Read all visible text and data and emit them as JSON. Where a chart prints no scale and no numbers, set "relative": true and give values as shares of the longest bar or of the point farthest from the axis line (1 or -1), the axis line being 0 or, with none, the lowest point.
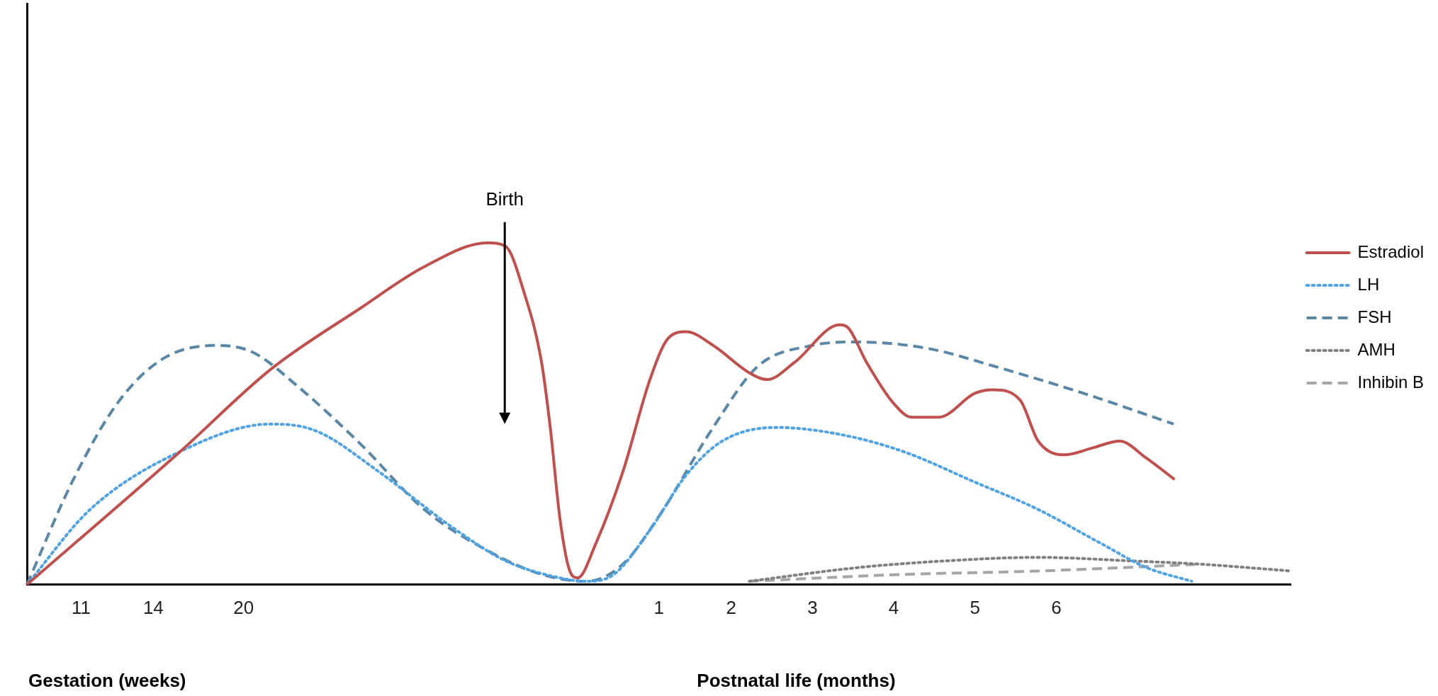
{
  "chart_data": {
    "type": "line",
    "relative": true,
    "categories": [
      null,
      null,
      null,
      null,
      null,
      null,
      "11",
      null,
      null,
      null,
      null,
      null,
      null,
      null,
      "14",
      null,
      null,
      null,
      null,
      null,
      null,
      null,
      null,
      null,
      "20",
      null,
      null,
      null,
      null,
      null,
      null,
      null,
      null,
      null,
      null,
      null,
      null,
      null,
      null,
      null,
      null,
      null,
      null,
      null,
      null,
      null,
      null,
      null,
      null,
      null,
      null,
      null,
      null,
      null,
      null,
      null,
      null,
      null,
      null,
      null,
      null,
      null,
      null,
      null,
      null,
      null,
      null,
      null,
      null,
      null,
      "1",
      null,
      null,
      null,
      null,
      null,
      null,
      null,
      "2",
      null,
      null,
      null,
      null,
      null,
      null,
      null,
      null,
      "3",
      null,
      null,
      null,
      null,
      null,
      null,
      null,
      null,
      "4",
      null,
      null,
      null,
      null,
      null,
      null,
      null,
      null,
      "5",
      null,
      null,
      null,
      null,
      null,
      null,
      null,
      null,
      "6",
      null,
      null,
      null,
      null,
      null,
      null,
      null,
      null,
      null,
      null,
      null,
      null,
      null,
      null,
      null,
      null,
      null,
      null,
      null,
      null,
      null,
      null,
      null,
      null,
      null,
      null
    ],
    "series": [
      {
        "name": "Estradiol",
        "color": "#c0504d",
        "line_style": "solid",
        "values": [
          0,
          null,
          null,
          null,
          null,
          null,
          null,
          null,
          null,
          null,
          null,
          null,
          null,
          null,
          null,
          null,
          null,
          0.39,
          null,
          null,
          null,
          null,
          null,
          null,
          null,
          null,
          null,
          0.63,
          null,
          null,
          null,
          null,
          null,
          null,
          null,
          null,
          null,
          0.81,
          null,
          null,
          null,
          null,
          null,
          null,
          0.93,
          null,
          null,
          null,
          null,
          null,
          null,
          1,
          null,
          0.99,
          null,
          0.86,
          null,
          0.65,
          0.45,
          0.2,
          0.05,
          0.02,
          null,
          0.12,
          null,
          null,
          0.33,
          null,
          null,
          0.6,
          null,
          0.72,
          null,
          0.74,
          null,
          null,
          0.7,
          null,
          null,
          null,
          0.62,
          null,
          0.6,
          null,
          null,
          0.65,
          null,
          null,
          null,
          null,
          0.76,
          0.75,
          null,
          0.65,
          null,
          null,
          0.53,
          null,
          0.49,
          null,
          null,
          0.49,
          null,
          null,
          null,
          0.56,
          null,
          0.57,
          null,
          null,
          0.54,
          null,
          0.42,
          null,
          null,
          0.38,
          null,
          null,
          0.4,
          null,
          null,
          0.42,
          null,
          null,
          0.37,
          null,
          null,
          0.31,
          null,
          null,
          null,
          null,
          null,
          null,
          null,
          null,
          null,
          null,
          null,
          null,
          null
        ]
      },
      {
        "name": "LH",
        "color": "#4fa3e3",
        "line_style": "dotted",
        "values": [
          0,
          null,
          null,
          null,
          null,
          null,
          null,
          0.22,
          null,
          null,
          null,
          null,
          null,
          null,
          null,
          null,
          null,
          0.39,
          null,
          null,
          null,
          null,
          null,
          null,
          null,
          null,
          null,
          0.47,
          null,
          null,
          null,
          null,
          0.45,
          null,
          null,
          null,
          null,
          null,
          null,
          0.33,
          null,
          null,
          null,
          null,
          null,
          null,
          null,
          0.17,
          null,
          null,
          null,
          null,
          null,
          0.07,
          null,
          null,
          null,
          null,
          null,
          0.02,
          null,
          null,
          0.01,
          null,
          null,
          0.03,
          null,
          null,
          null,
          0.16,
          null,
          null,
          null,
          0.32,
          null,
          null,
          null,
          0.42,
          null,
          null,
          null,
          null,
          null,
          0.46,
          null,
          null,
          null,
          null,
          null,
          null,
          0.44,
          null,
          null,
          null,
          null,
          null,
          null,
          0.39,
          null,
          null,
          null,
          null,
          null,
          null,
          null,
          0.3,
          null,
          null,
          null,
          null,
          null,
          null,
          0.22,
          null,
          null,
          null,
          null,
          null,
          null,
          0.12,
          null,
          null,
          null,
          null,
          0.05,
          null,
          null,
          null,
          null,
          0.01,
          null,
          null,
          null,
          null,
          null,
          null,
          null,
          null,
          null,
          null,
          null
        ]
      },
      {
        "name": "FSH",
        "color": "#5b87a6",
        "line_style": "dashed",
        "values": [
          0,
          null,
          null,
          null,
          null,
          0.3,
          null,
          null,
          null,
          null,
          0.53,
          null,
          null,
          null,
          null,
          0.66,
          null,
          null,
          null,
          null,
          null,
          0.7,
          null,
          null,
          null,
          0.68,
          null,
          null,
          null,
          null,
          0.58,
          null,
          null,
          null,
          null,
          null,
          null,
          0.41,
          null,
          null,
          null,
          null,
          null,
          null,
          0.22,
          null,
          null,
          null,
          null,
          null,
          null,
          0.1,
          null,
          null,
          null,
          null,
          null,
          0.03,
          null,
          null,
          null,
          null,
          0.01,
          null,
          null,
          null,
          0.06,
          null,
          null,
          null,
          0.2,
          null,
          null,
          null,
          null,
          null,
          0.46,
          null,
          null,
          null,
          null,
          0.64,
          null,
          null,
          null,
          null,
          null,
          0.7,
          null,
          null,
          null,
          null,
          0.71,
          null,
          null,
          null,
          null,
          null,
          null,
          null,
          0.69,
          null,
          null,
          null,
          null,
          null,
          null,
          0.64,
          null,
          null,
          null,
          null,
          null,
          null,
          null,
          null,
          null,
          0.56,
          null,
          null,
          null,
          null,
          null,
          null,
          null,
          null,
          null,
          0.47,
          null,
          null,
          null,
          null,
          null,
          null,
          null,
          null,
          null,
          null,
          null,
          null,
          null
        ]
      },
      {
        "name": "AMH",
        "color": "#808080",
        "line_style": "dotted",
        "values": [
          null,
          null,
          null,
          null,
          null,
          null,
          null,
          null,
          null,
          null,
          null,
          null,
          null,
          null,
          null,
          null,
          null,
          null,
          null,
          null,
          null,
          null,
          null,
          null,
          null,
          null,
          null,
          null,
          null,
          null,
          null,
          null,
          null,
          null,
          null,
          null,
          null,
          null,
          null,
          null,
          null,
          null,
          null,
          null,
          null,
          null,
          null,
          null,
          null,
          null,
          null,
          null,
          null,
          null,
          null,
          null,
          null,
          null,
          null,
          null,
          null,
          null,
          null,
          null,
          null,
          null,
          null,
          null,
          null,
          null,
          null,
          null,
          null,
          null,
          null,
          null,
          null,
          null,
          null,
          null,
          0.01,
          null,
          null,
          null,
          null,
          null,
          null,
          null,
          null,
          null,
          null,
          null,
          0.05,
          null,
          null,
          null,
          null,
          null,
          null,
          null,
          null,
          null,
          0.07,
          null,
          null,
          null,
          null,
          null,
          null,
          null,
          null,
          null,
          0.08,
          null,
          null,
          null,
          null,
          null,
          null,
          null,
          null,
          null,
          0.07,
          null,
          null,
          null,
          null,
          null,
          null,
          null,
          0.06,
          null,
          null,
          null,
          null,
          null,
          null,
          null,
          null,
          null,
          0.04
        ]
      },
      {
        "name": "Inhibin B",
        "color": "#a6a6a6",
        "line_style": "dashed",
        "values": [
          null,
          null,
          null,
          null,
          null,
          null,
          null,
          null,
          null,
          null,
          null,
          null,
          null,
          null,
          null,
          null,
          null,
          null,
          null,
          null,
          null,
          null,
          null,
          null,
          null,
          null,
          null,
          null,
          null,
          null,
          null,
          null,
          null,
          null,
          null,
          null,
          null,
          null,
          null,
          null,
          null,
          null,
          null,
          null,
          null,
          null,
          null,
          null,
          null,
          null,
          null,
          null,
          null,
          null,
          null,
          null,
          null,
          null,
          null,
          null,
          null,
          null,
          null,
          null,
          null,
          null,
          null,
          null,
          null,
          null,
          null,
          null,
          null,
          null,
          null,
          null,
          null,
          null,
          null,
          null,
          0.01,
          null,
          null,
          null,
          null,
          null,
          null,
          null,
          null,
          null,
          null,
          null,
          null,
          null,
          null,
          null,
          null,
          0.03,
          null,
          null,
          null,
          null,
          null,
          null,
          null,
          null,
          null,
          null,
          null,
          null,
          null,
          null,
          0.04,
          null,
          null,
          null,
          null,
          null,
          null,
          null,
          null,
          null,
          null,
          null,
          null,
          null,
          null,
          null,
          null,
          null,
          0.06,
          null,
          null,
          null,
          null,
          null,
          null,
          null,
          null,
          null,
          null
        ]
      }
    ],
    "annotations": [
      "Birth",
      "Gestation (weeks)",
      "Postnatal life (months)"
    ],
    "legend": "right",
    "grid": false,
    "marker": "none"
  }
}
